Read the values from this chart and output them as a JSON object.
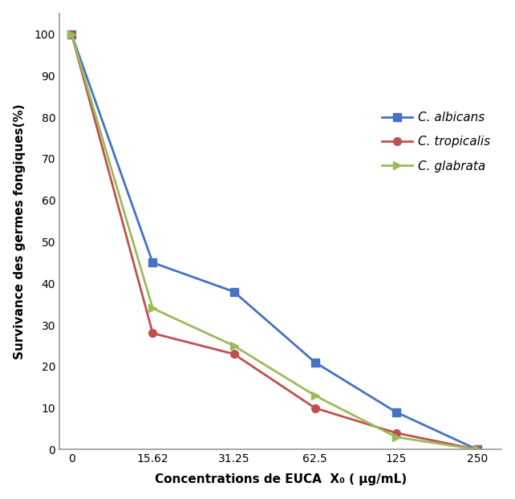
{
  "x_positions": [
    0,
    1,
    2,
    3,
    4,
    5
  ],
  "x_labels": [
    "0",
    "15.62",
    "31.25",
    "62.5",
    "125",
    "250"
  ],
  "series": [
    {
      "label": "C. albicans",
      "color": "#4472C4",
      "marker": "s",
      "y": [
        100,
        45,
        38,
        21,
        9,
        0
      ]
    },
    {
      "label": "C. tropicalis",
      "color": "#C0504D",
      "marker": "o",
      "y": [
        100,
        28,
        23,
        10,
        4,
        0
      ]
    },
    {
      "label": "C. glabrata",
      "color": "#9BBB59",
      "marker": ">",
      "y": [
        100,
        34,
        25,
        13,
        3,
        0
      ]
    }
  ],
  "xlabel": "Concentrations de EUCA  X₀ ( μg/mL)",
  "ylabel": "Survivance des germes fongiques(%)",
  "ylim": [
    0,
    105
  ],
  "xlim": [
    -0.15,
    5.3
  ],
  "yticks": [
    0,
    10,
    20,
    30,
    40,
    50,
    60,
    70,
    80,
    90,
    100
  ],
  "background_color": "#ffffff"
}
